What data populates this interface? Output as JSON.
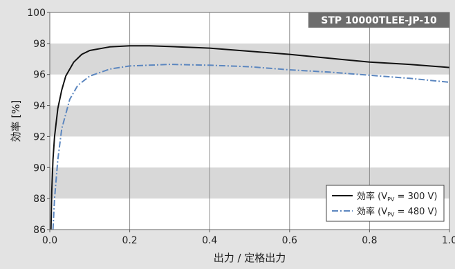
{
  "chart_data": {
    "type": "line",
    "title": "STP 10000TLEE-JP-10",
    "xlabel": "出力 / 定格出力",
    "ylabel": "効率 [%]",
    "xlim": [
      0.0,
      1.0
    ],
    "ylim": [
      86,
      100
    ],
    "x_ticks": [
      "0.0",
      "0.2",
      "0.4",
      "0.6",
      "0.8",
      "1.0"
    ],
    "y_ticks": [
      "86",
      "88",
      "90",
      "92",
      "94",
      "96",
      "98",
      "100"
    ],
    "bands": [
      [
        88,
        90
      ],
      [
        92,
        94
      ],
      [
        96,
        98
      ]
    ],
    "legend_position": "bottom-right",
    "series": [
      {
        "name": "効率 (V_PV = 300 V)",
        "legend_main": "効率 (V",
        "legend_sub": "PV",
        "legend_tail": " = 300 V)",
        "style": "solid",
        "color": "#111111",
        "points": [
          [
            0.003,
            86.0
          ],
          [
            0.005,
            88.5
          ],
          [
            0.008,
            90.5
          ],
          [
            0.012,
            92.0
          ],
          [
            0.02,
            93.8
          ],
          [
            0.03,
            95.0
          ],
          [
            0.04,
            95.9
          ],
          [
            0.06,
            96.8
          ],
          [
            0.08,
            97.3
          ],
          [
            0.1,
            97.55
          ],
          [
            0.15,
            97.78
          ],
          [
            0.2,
            97.85
          ],
          [
            0.25,
            97.85
          ],
          [
            0.3,
            97.8
          ],
          [
            0.4,
            97.7
          ],
          [
            0.5,
            97.5
          ],
          [
            0.6,
            97.3
          ],
          [
            0.7,
            97.05
          ],
          [
            0.8,
            96.8
          ],
          [
            0.9,
            96.65
          ],
          [
            1.0,
            96.45
          ]
        ]
      },
      {
        "name": "効率 (V_PV = 480 V)",
        "legend_main": "効率 (V",
        "legend_sub": "PV",
        "legend_tail": " = 480 V)",
        "style": "dashdot",
        "color": "#5b86bf",
        "points": [
          [
            0.008,
            86.0
          ],
          [
            0.012,
            88.0
          ],
          [
            0.02,
            90.5
          ],
          [
            0.03,
            92.5
          ],
          [
            0.05,
            94.4
          ],
          [
            0.07,
            95.3
          ],
          [
            0.1,
            95.9
          ],
          [
            0.15,
            96.35
          ],
          [
            0.2,
            96.55
          ],
          [
            0.3,
            96.65
          ],
          [
            0.4,
            96.6
          ],
          [
            0.5,
            96.5
          ],
          [
            0.6,
            96.3
          ],
          [
            0.7,
            96.15
          ],
          [
            0.8,
            95.95
          ],
          [
            0.9,
            95.75
          ],
          [
            1.0,
            95.5
          ]
        ]
      }
    ]
  }
}
